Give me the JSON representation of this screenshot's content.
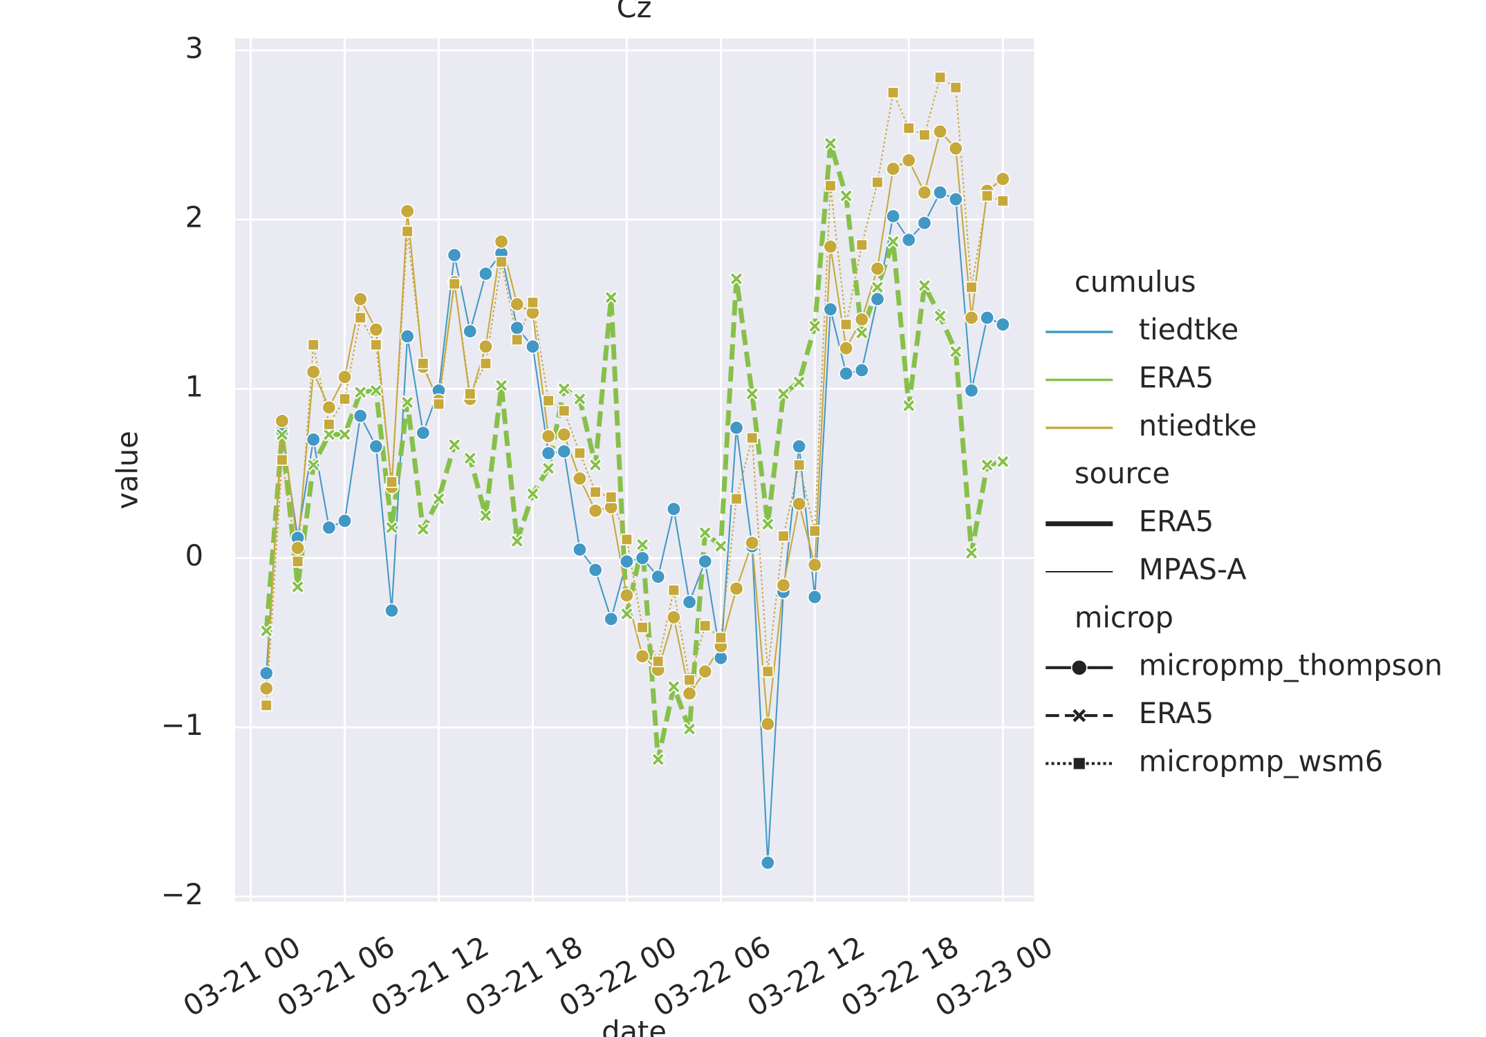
{
  "chart_data": {
    "type": "line",
    "title": "Cz",
    "xlabel": "date",
    "ylabel": "value",
    "x": [
      "03-21 01",
      "03-21 02",
      "03-21 03",
      "03-21 04",
      "03-21 05",
      "03-21 06",
      "03-21 07",
      "03-21 08",
      "03-21 09",
      "03-21 10",
      "03-21 11",
      "03-21 12",
      "03-21 13",
      "03-21 14",
      "03-21 15",
      "03-21 16",
      "03-21 17",
      "03-21 18",
      "03-21 19",
      "03-21 20",
      "03-21 21",
      "03-21 22",
      "03-21 23",
      "03-22 00",
      "03-22 01",
      "03-22 02",
      "03-22 03",
      "03-22 04",
      "03-22 05",
      "03-22 06",
      "03-22 07",
      "03-22 08",
      "03-22 09",
      "03-22 10",
      "03-22 11",
      "03-22 12",
      "03-22 13",
      "03-22 14",
      "03-22 15",
      "03-22 16",
      "03-22 17",
      "03-22 18",
      "03-22 19",
      "03-22 20",
      "03-22 21",
      "03-22 22",
      "03-22 23",
      "03-23 00"
    ],
    "xlim": [
      "03-20 23",
      "03-23 02"
    ],
    "xticks": [
      "03-21 00",
      "03-21 06",
      "03-21 12",
      "03-21 18",
      "03-22 00",
      "03-22 06",
      "03-22 12",
      "03-22 18",
      "03-23 00"
    ],
    "ylim": [
      -2.03,
      3.07
    ],
    "yticks": [
      {
        "value": -2,
        "label": "−2"
      },
      {
        "value": -1,
        "label": "−1"
      },
      0,
      1,
      2,
      3
    ],
    "grid": true,
    "series": [
      {
        "name": "tiedtke",
        "source": "MPAS-A",
        "microp": "micropmp_thompson",
        "color": "#4298c5",
        "values": [
          -0.68,
          0.75,
          0.12,
          0.7,
          0.18,
          0.22,
          0.84,
          0.66,
          -0.31,
          1.31,
          0.74,
          0.99,
          1.79,
          1.34,
          1.68,
          1.8,
          1.36,
          1.25,
          0.62,
          0.63,
          0.05,
          -0.07,
          -0.36,
          -0.02,
          0.0,
          -0.11,
          0.29,
          -0.26,
          -0.02,
          -0.59,
          0.77,
          0.07,
          -1.8,
          -0.2,
          0.66,
          -0.23,
          1.47,
          1.09,
          1.11,
          1.53,
          2.02,
          1.88,
          1.98,
          2.16,
          2.12,
          0.99,
          1.42,
          1.38
        ]
      },
      {
        "name": "ERA5",
        "source": "ERA5",
        "microp": "ERA5",
        "color": "#86c04a",
        "values": [
          -0.43,
          0.73,
          -0.17,
          0.55,
          0.73,
          0.73,
          0.98,
          0.99,
          0.18,
          0.92,
          0.17,
          0.35,
          0.67,
          0.59,
          0.25,
          1.02,
          0.1,
          0.38,
          0.53,
          1.0,
          0.94,
          0.55,
          1.54,
          -0.33,
          0.08,
          -1.19,
          -0.76,
          -1.01,
          0.15,
          0.07,
          1.65,
          0.97,
          0.2,
          0.97,
          1.04,
          1.37,
          2.45,
          2.14,
          1.33,
          1.6,
          1.87,
          0.9,
          1.61,
          1.43,
          1.22,
          0.03,
          0.55,
          0.57
        ]
      },
      {
        "name": "ntiedtke",
        "source": "MPAS-A",
        "microp": "micropmp_thompson",
        "color": "#c6a83b",
        "values": [
          -0.77,
          0.81,
          0.06,
          1.1,
          0.89,
          1.07,
          1.53,
          1.35,
          0.42,
          2.05,
          1.13,
          0.93,
          1.63,
          0.94,
          1.25,
          1.87,
          1.5,
          1.45,
          0.72,
          0.73,
          0.47,
          0.28,
          0.3,
          -0.22,
          -0.58,
          -0.66,
          -0.35,
          -0.8,
          -0.67,
          -0.52,
          -0.18,
          0.09,
          -0.98,
          -0.16,
          0.32,
          -0.04,
          1.84,
          1.24,
          1.41,
          1.71,
          2.3,
          2.35,
          2.16,
          2.52,
          2.42,
          1.42,
          2.17,
          2.24
        ]
      },
      {
        "name": "ntiedtke",
        "source": "MPAS-A",
        "microp": "micropmp_wsm6",
        "color": "#c6a83b",
        "values": [
          -0.87,
          0.58,
          -0.02,
          1.26,
          0.79,
          0.94,
          1.42,
          1.26,
          0.45,
          1.93,
          1.15,
          0.91,
          1.62,
          0.97,
          1.15,
          1.75,
          1.29,
          1.51,
          0.93,
          0.87,
          0.62,
          0.39,
          0.36,
          0.11,
          -0.41,
          -0.61,
          -0.19,
          -0.72,
          -0.4,
          -0.47,
          0.35,
          0.71,
          -0.67,
          0.13,
          0.55,
          0.16,
          2.2,
          1.38,
          1.85,
          2.22,
          2.75,
          2.54,
          2.5,
          2.84,
          2.78,
          1.6,
          2.14,
          2.11
        ]
      }
    ],
    "legend": [
      {
        "title": "cumulus",
        "entries": [
          "tiedtke",
          "ERA5",
          "ntiedtke"
        ]
      },
      {
        "title": "source",
        "entries": [
          "ERA5",
          "MPAS-A"
        ]
      },
      {
        "title": "microp",
        "entries": [
          "micropmp_thompson",
          "ERA5",
          "micropmp_wsm6"
        ]
      }
    ]
  }
}
